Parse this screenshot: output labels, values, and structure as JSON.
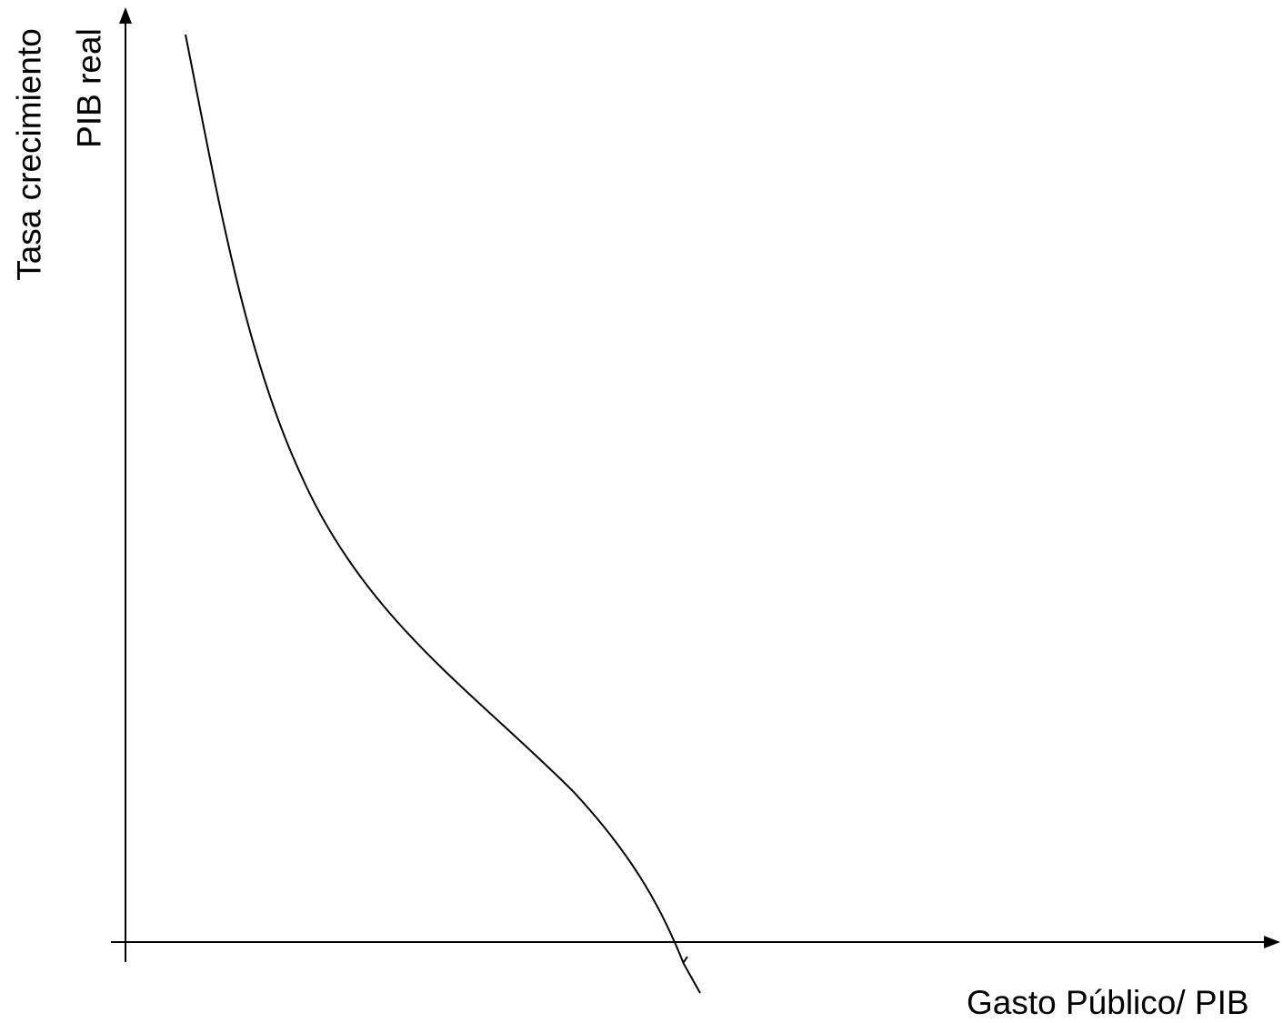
{
  "diagram": {
    "x_axis_label": "Gasto Público/ PIB",
    "y_axis_label_line1": "Tasa crecimiento",
    "y_axis_label_line2": "PIB real",
    "stroke_color": "#000000",
    "background_color": "#ffffff"
  }
}
